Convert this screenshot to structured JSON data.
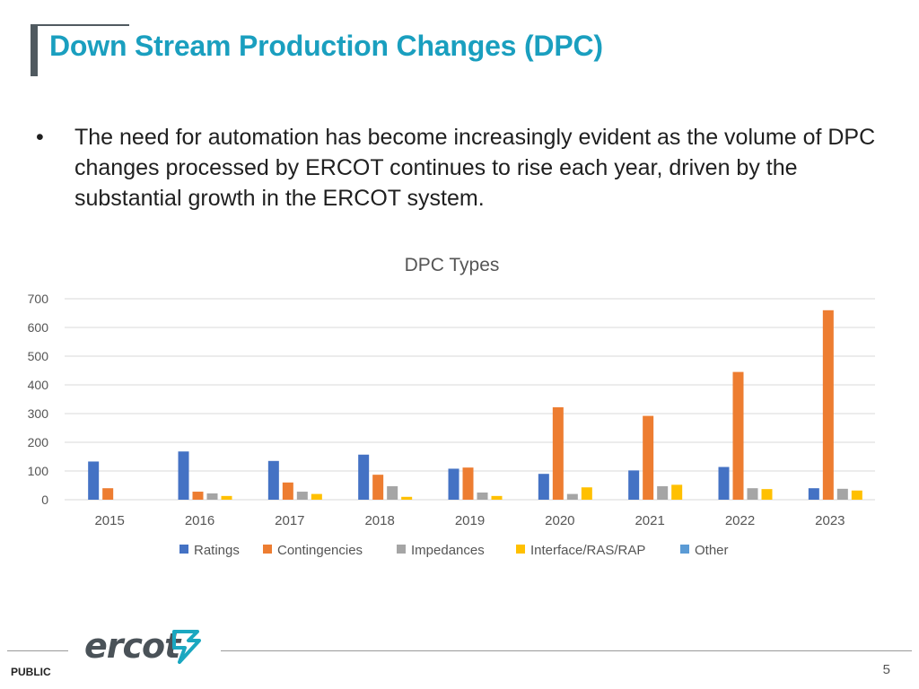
{
  "slide": {
    "title": "Down Stream Production Changes (DPC)",
    "bullet_symbol": "•",
    "bullet_text": "The need for automation has become increasingly evident as the volume of DPC changes processed by ERCOT continues to rise each year, driven by the substantial growth in the ERCOT system.",
    "footer_label": "PUBLIC",
    "page_number": "5",
    "logo_text": "ercot"
  },
  "chart_data": {
    "type": "bar",
    "title": "DPC Types",
    "xlabel": "",
    "ylabel": "",
    "ylim": [
      0,
      700
    ],
    "yticks": [
      0,
      100,
      200,
      300,
      400,
      500,
      600,
      700
    ],
    "categories": [
      "2015",
      "2016",
      "2017",
      "2018",
      "2019",
      "2020",
      "2021",
      "2022",
      "2023"
    ],
    "series": [
      {
        "name": "Ratings",
        "color": "#4472c4",
        "values": [
          133,
          168,
          135,
          157,
          108,
          90,
          102,
          114,
          40
        ]
      },
      {
        "name": "Contingencies",
        "color": "#ed7d31",
        "values": [
          40,
          28,
          60,
          87,
          112,
          322,
          292,
          445,
          660
        ]
      },
      {
        "name": "Impedances",
        "color": "#a5a5a5",
        "values": [
          0,
          22,
          28,
          47,
          25,
          20,
          47,
          40,
          38
        ]
      },
      {
        "name": "Interface/RAS/RAP",
        "color": "#ffc000",
        "values": [
          0,
          13,
          20,
          10,
          13,
          43,
          52,
          37,
          32
        ]
      },
      {
        "name": "Other",
        "color": "#5b9bd5",
        "values": [
          0,
          0,
          0,
          0,
          0,
          0,
          0,
          0,
          0
        ]
      }
    ],
    "legend_position": "bottom",
    "grid": true
  }
}
